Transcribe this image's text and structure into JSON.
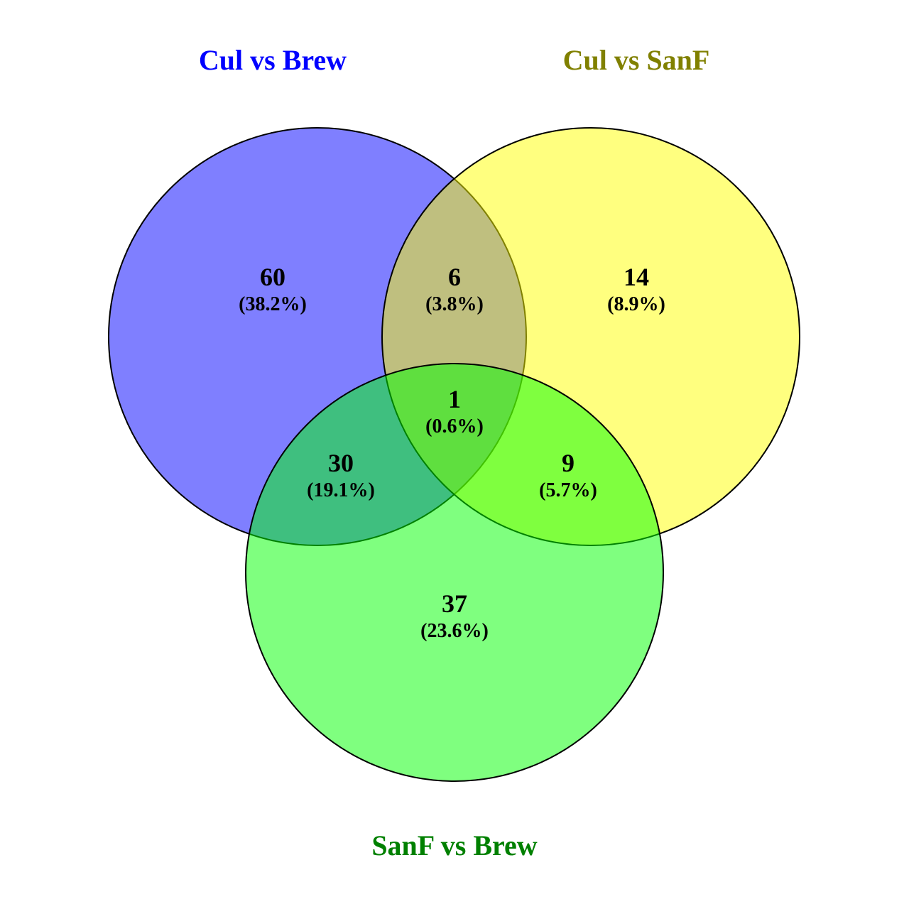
{
  "sets": {
    "a": {
      "title": "Cul vs Brew",
      "fill": "#0000ff",
      "title_color": "#0000ff"
    },
    "b": {
      "title": "Cul vs SanF",
      "fill": "#ffff00",
      "title_color": "#808000"
    },
    "c": {
      "title": "SanF vs Brew",
      "fill": "#00ff00",
      "title_color": "#008000"
    }
  },
  "fill_opacity": 0.5,
  "regions": {
    "a_only": {
      "count": "60",
      "pct": "(38.2%)"
    },
    "ab": {
      "count": "6",
      "pct": "(3.8%)"
    },
    "b_only": {
      "count": "14",
      "pct": "(8.9%)"
    },
    "abc": {
      "count": "1",
      "pct": "(0.6%)"
    },
    "ac": {
      "count": "30",
      "pct": "(19.1%)"
    },
    "bc": {
      "count": "9",
      "pct": "(5.7%)"
    },
    "c_only": {
      "count": "37",
      "pct": "(23.6%)"
    }
  }
}
